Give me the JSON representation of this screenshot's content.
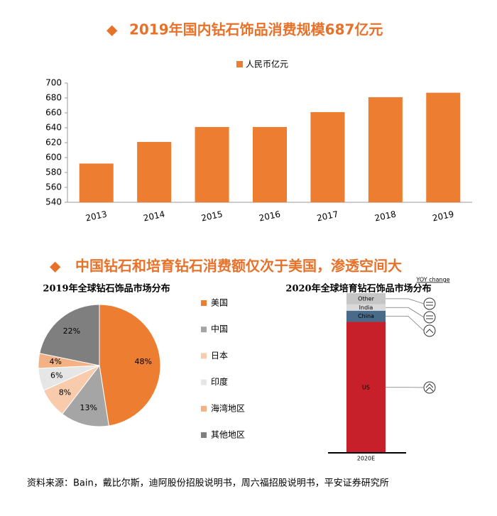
{
  "sections": [
    "2019年国内钻石饰品消费规模687亿元",
    "中国钻石和培育钻石消费额仅次于美国，渗透空间大"
  ],
  "source": "资料来源：Bain，戴比尔斯，迪阿股份招股说明书，周六福招股说明书，平安证券研究所",
  "chart_data": [
    {
      "type": "bar",
      "legend": "人民币亿元",
      "color": "#ed7d31",
      "categories": [
        "2013",
        "2014",
        "2015",
        "2016",
        "2017",
        "2018",
        "2019"
      ],
      "values": [
        592,
        621,
        641,
        641,
        661,
        681,
        687
      ],
      "ylim": [
        540,
        700
      ],
      "yticks": [
        540,
        560,
        580,
        600,
        620,
        640,
        660,
        680,
        700
      ]
    },
    {
      "type": "pie",
      "title": "2019年全球钻石饰品市场分布",
      "categories": [
        "美国",
        "中国",
        "日本",
        "印度",
        "海湾地区",
        "其他地区"
      ],
      "values": [
        48,
        13,
        8,
        6,
        4,
        22
      ],
      "value_labels": [
        "48%",
        "13%",
        "8%",
        "6%",
        "4%",
        "22%"
      ],
      "colors": [
        "#ed7d31",
        "#a5a5a5",
        "#f8cbad",
        "#e7e6e6",
        "#f4b183",
        "#7f7f7f"
      ]
    },
    {
      "type": "stacked_bar",
      "title": "2020年全球培育钻石饰品市场分布",
      "annotation": "YOY change",
      "categories": [
        "2020E"
      ],
      "series": [
        {
          "name": "US",
          "color": "#c8202a",
          "values": [
            82
          ]
        },
        {
          "name": "China",
          "color": "#4a6a8a",
          "values": [
            7
          ]
        },
        {
          "name": "India",
          "color": "#d9d9d9",
          "values": [
            4
          ]
        },
        {
          "name": "Other",
          "color": "#c6c6c6",
          "values": [
            7
          ]
        }
      ]
    }
  ]
}
